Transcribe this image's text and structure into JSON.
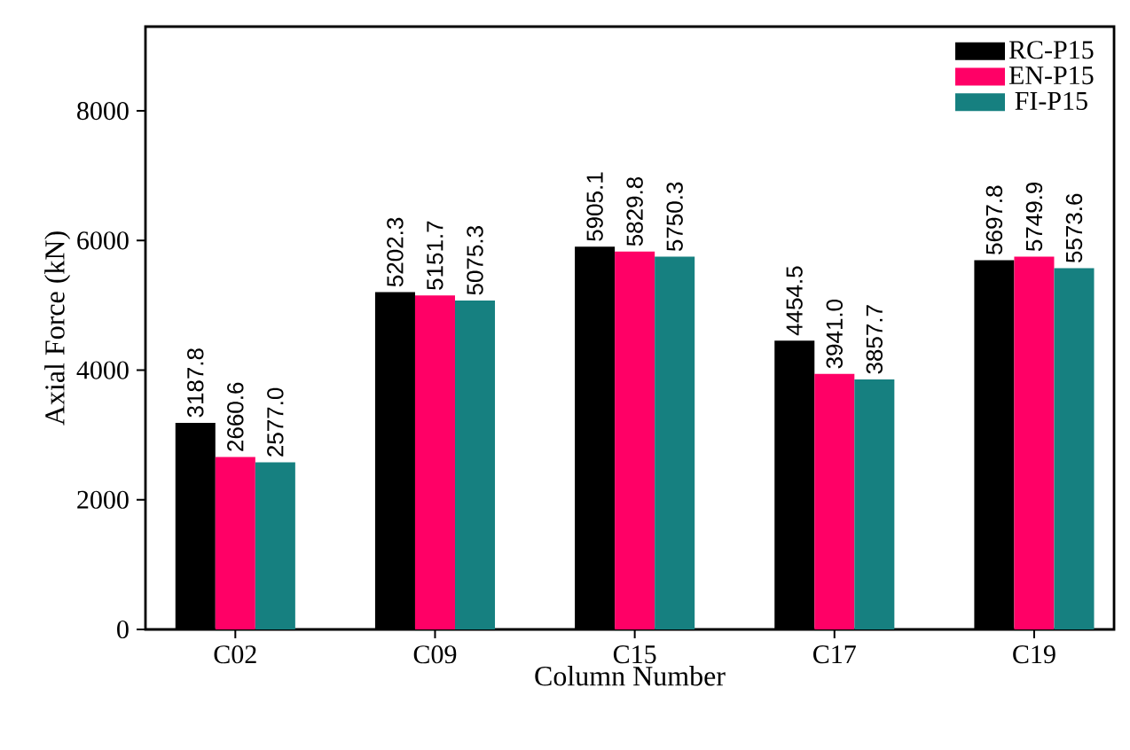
{
  "chart_data": {
    "type": "bar",
    "xlabel": "Column Number",
    "ylabel": "Axial Force (kN)",
    "categories": [
      "C02",
      "C09",
      "C15",
      "C17",
      "C19"
    ],
    "series": [
      {
        "name": "RC-P15",
        "color": "#000000",
        "values": [
          3187.8,
          5202.3,
          5905.1,
          4454.5,
          5697.8
        ],
        "value_labels": [
          "3187.8",
          "5202.3",
          "5905.1",
          "4454.5",
          "5697.8"
        ]
      },
      {
        "name": "EN-P15",
        "color": "#ff0066",
        "values": [
          2660.6,
          5151.7,
          5829.8,
          3941,
          5749.9
        ],
        "value_labels": [
          "2660.6",
          "5151.7",
          "5829.8",
          "3941.0",
          "5749.9"
        ]
      },
      {
        "name": "FI-P15",
        "color": "#168080",
        "values": [
          2577,
          5075.3,
          5750.3,
          3857.7,
          5573.6
        ],
        "value_labels": [
          "2577.0",
          "5075.3",
          "5750.3",
          "3857.7",
          "5573.6"
        ]
      }
    ],
    "ylim": [
      0,
      9300
    ],
    "yticks": [
      0,
      2000,
      4000,
      6000,
      8000
    ],
    "legend": "top right",
    "grid": false
  }
}
